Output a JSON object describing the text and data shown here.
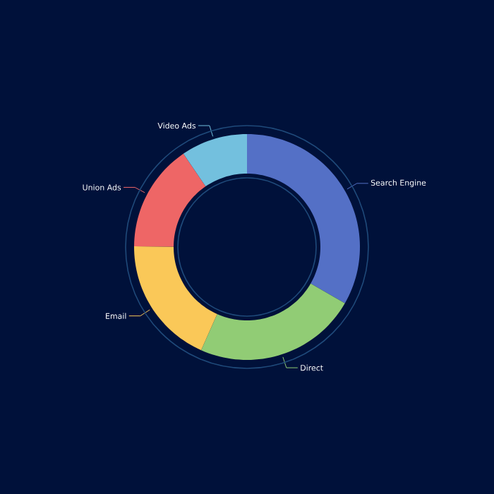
{
  "chart_data": {
    "type": "donut",
    "categories": [
      "Search Engine",
      "Direct",
      "Email",
      "Union Ads",
      "Video Ads"
    ],
    "values": [
      33.3,
      23.36,
      18.43,
      15.38,
      9.53
    ],
    "colors": [
      "#5470c6",
      "#91cc75",
      "#fac858",
      "#ee6666",
      "#73c0de"
    ]
  }
}
